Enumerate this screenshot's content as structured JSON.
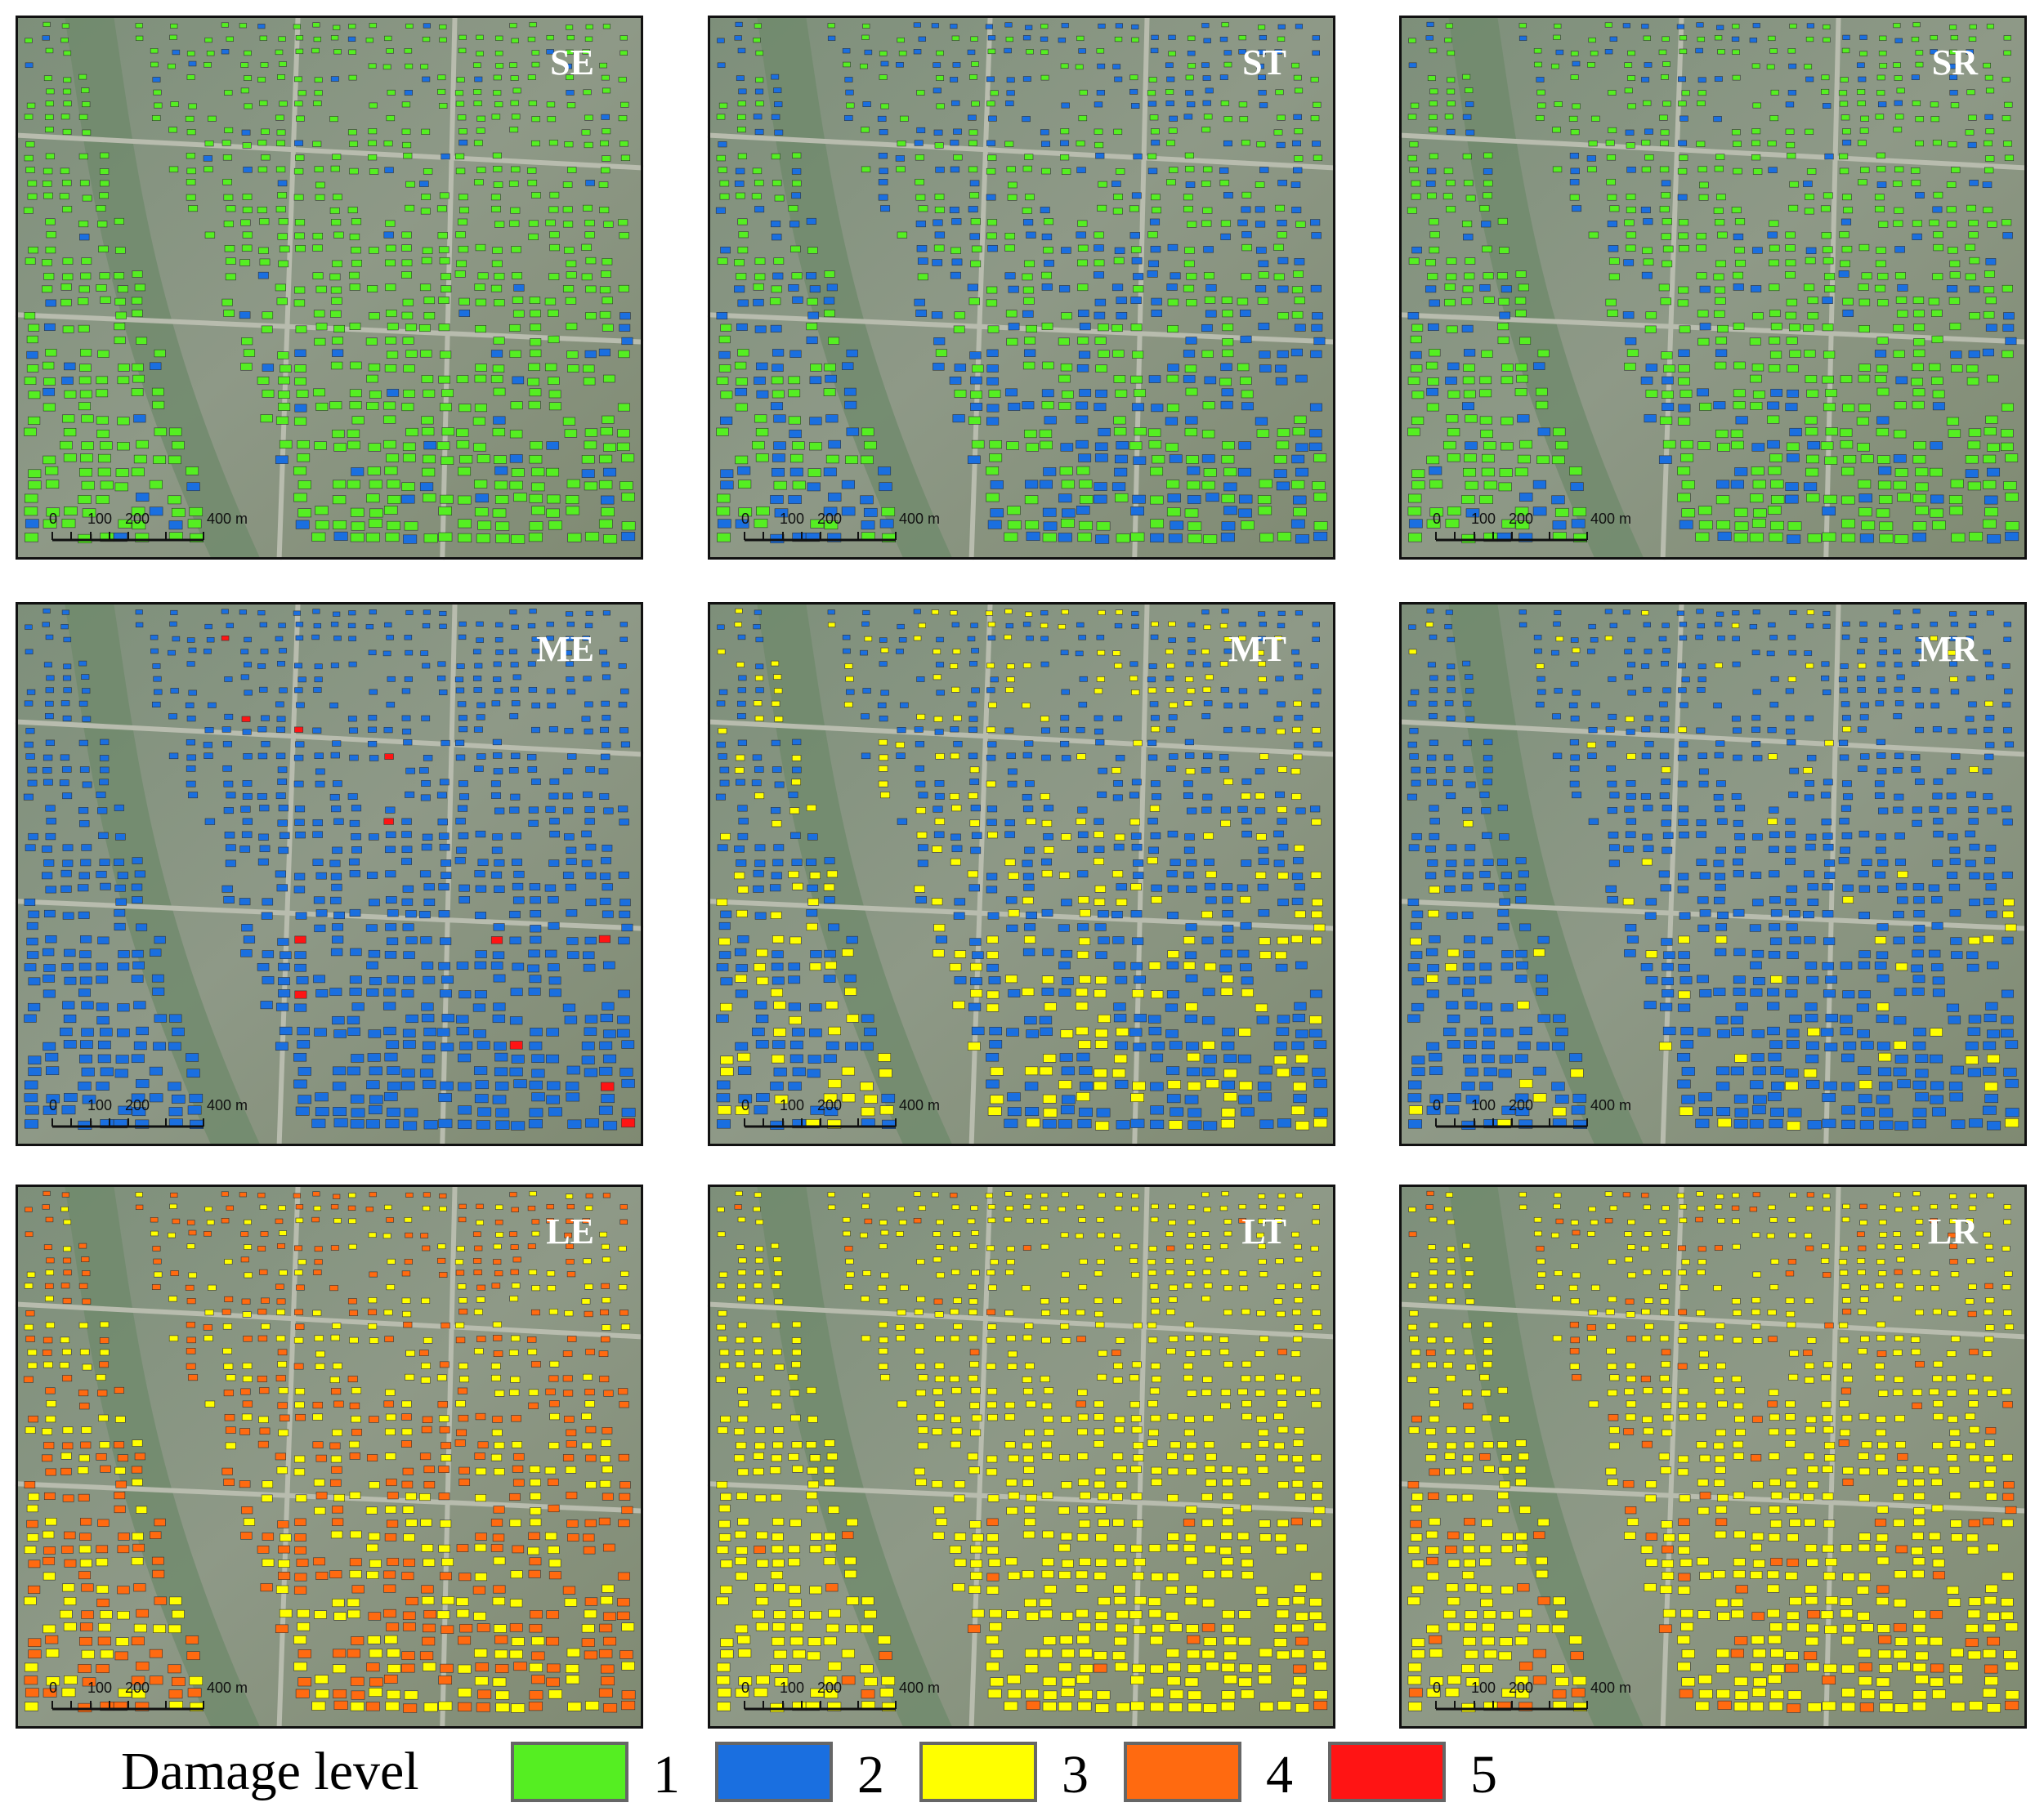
{
  "panels": [
    {
      "label": "SE"
    },
    {
      "label": "ST"
    },
    {
      "label": "SR"
    },
    {
      "label": "ME"
    },
    {
      "label": "MT"
    },
    {
      "label": "MR"
    },
    {
      "label": "LE"
    },
    {
      "label": "LT"
    },
    {
      "label": "LR"
    }
  ],
  "scale_bar": {
    "labels": [
      "0",
      "100",
      "200",
      "400 m"
    ]
  },
  "legend": {
    "title": "Damage level",
    "items": [
      {
        "label": "1",
        "color": "#55ee22"
      },
      {
        "label": "2",
        "color": "#1a6fe0"
      },
      {
        "label": "3",
        "color": "#ffff00"
      },
      {
        "label": "4",
        "color": "#ff6a10"
      },
      {
        "label": "5",
        "color": "#ff1414"
      }
    ]
  }
}
